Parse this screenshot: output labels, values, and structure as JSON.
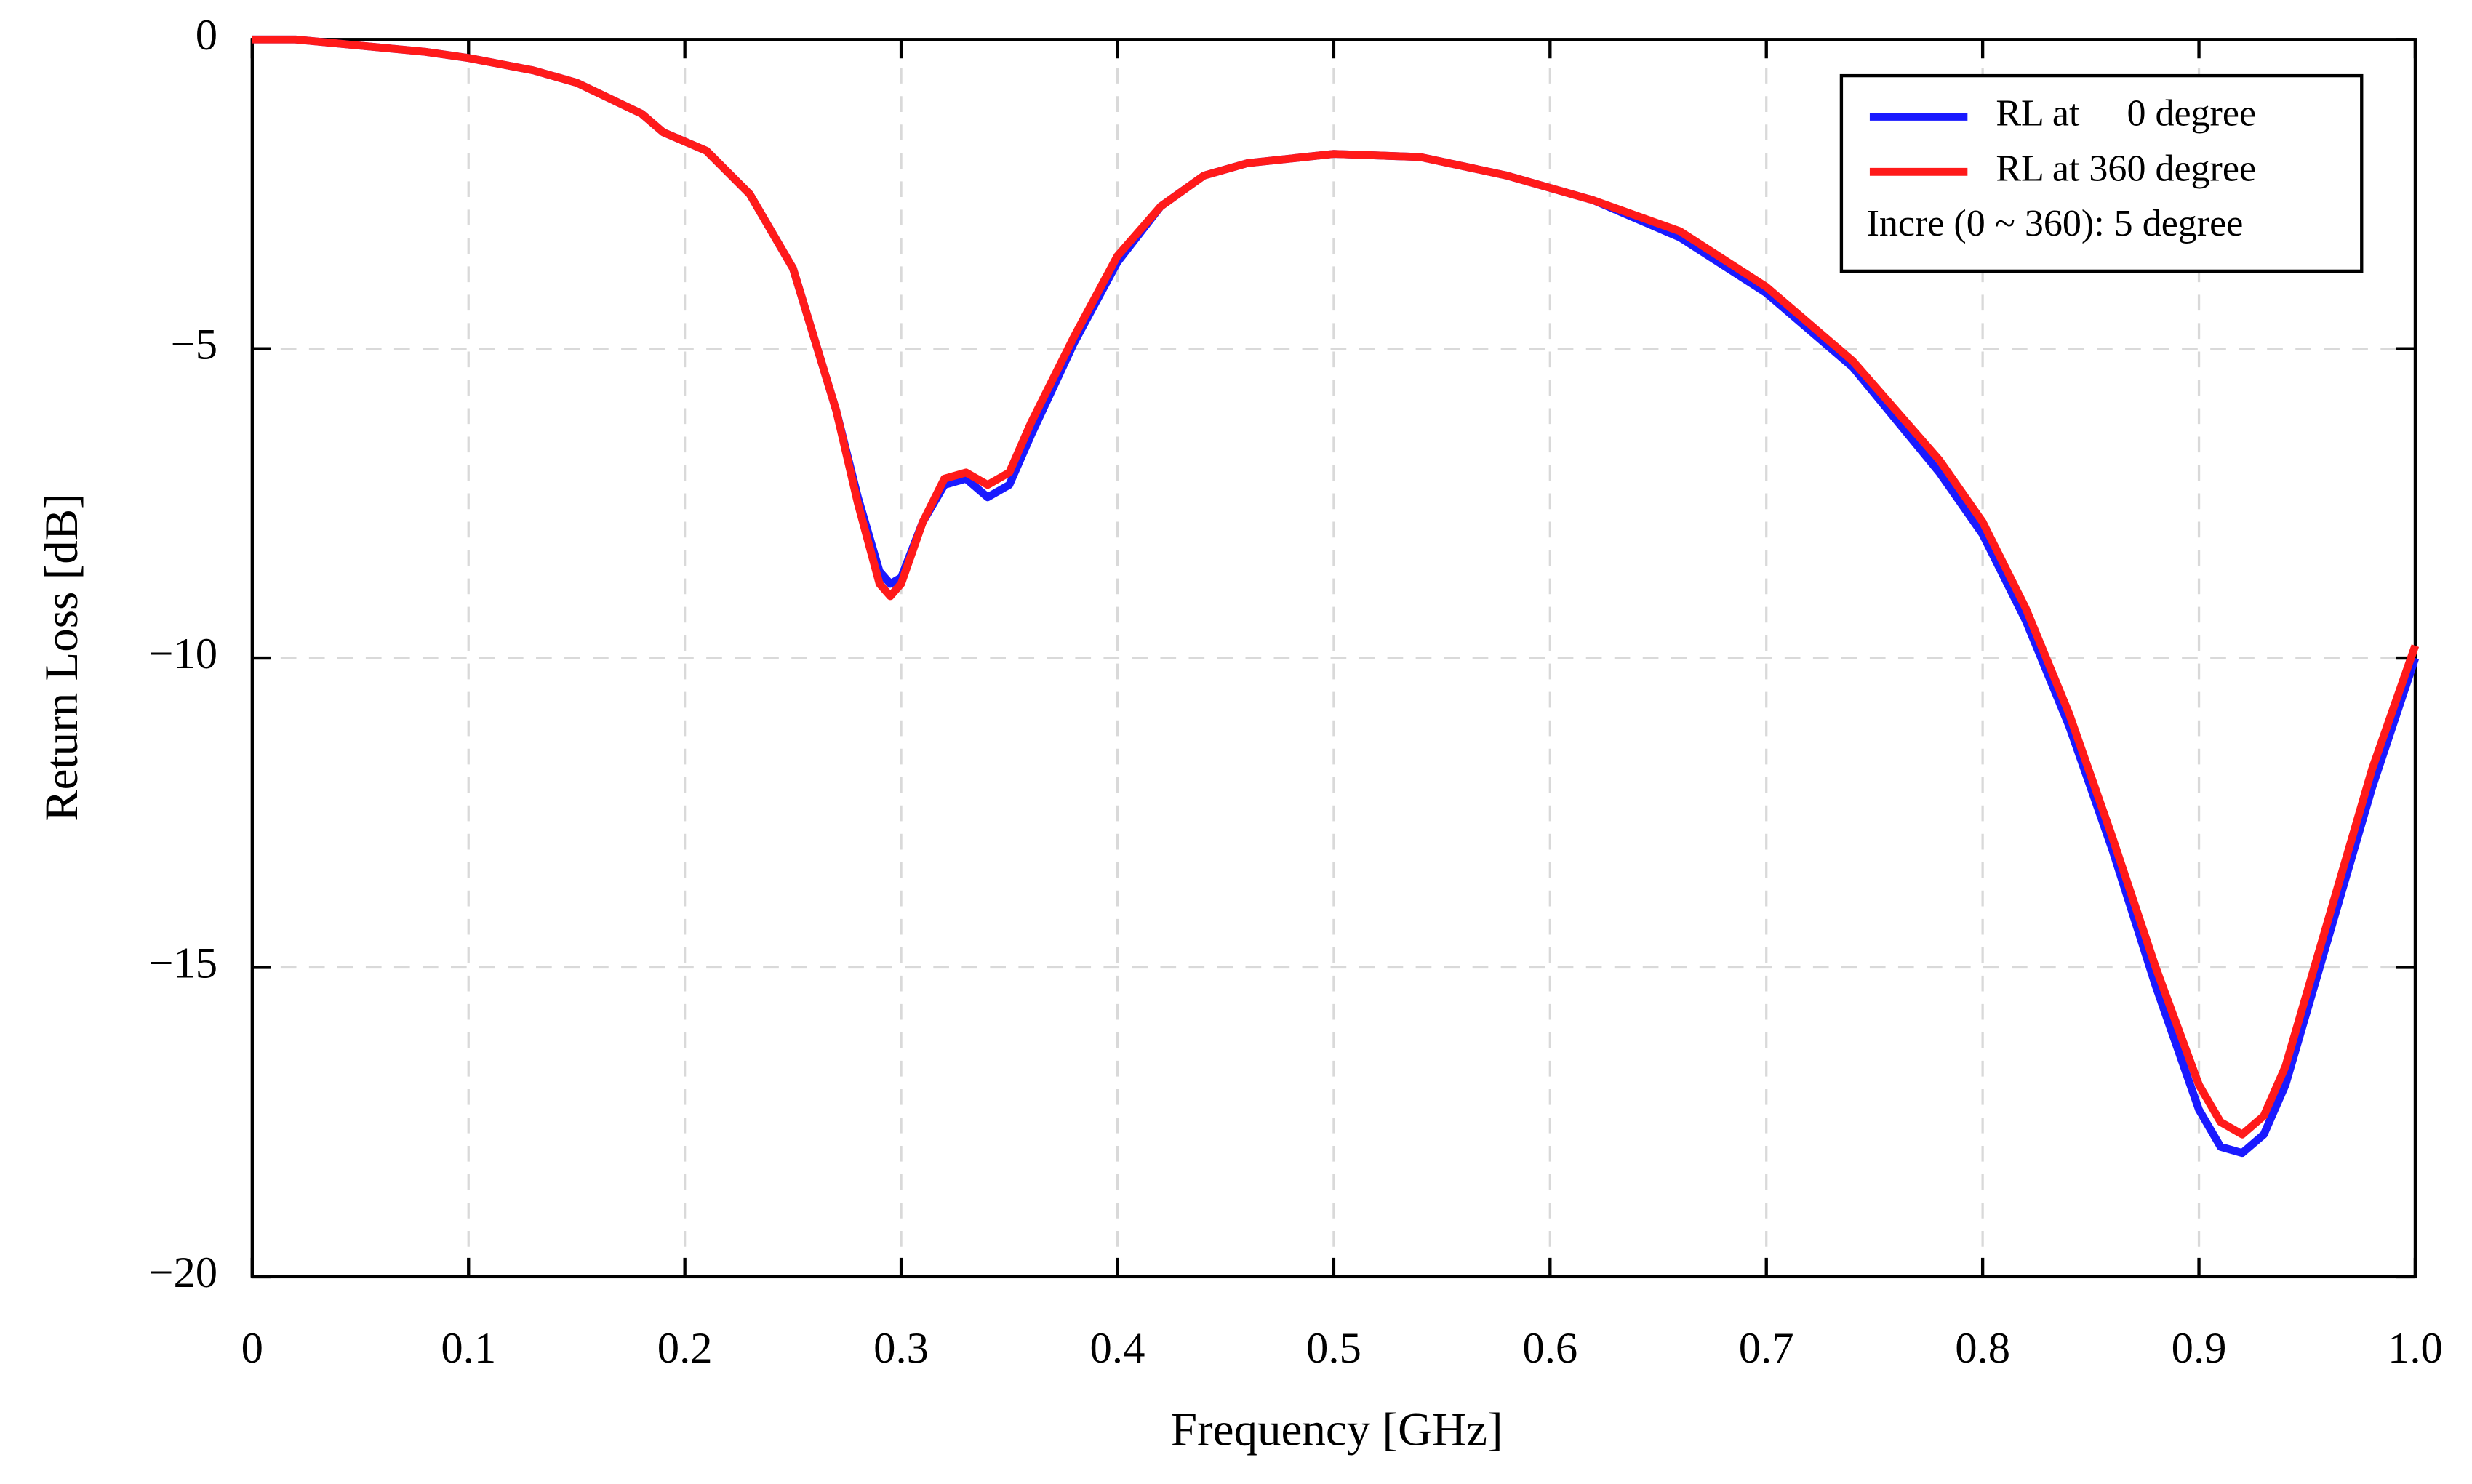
{
  "chart_data": {
    "type": "line",
    "x_label": "Frequency [GHz]",
    "y_label": "Return Loss [dB]",
    "annotation": "Incre (0 ~ 360): 5 degree",
    "legend": "top-right",
    "grid": true,
    "xlim": [
      0,
      1
    ],
    "ylim": [
      -20,
      0
    ],
    "xticks": [
      0,
      0.1,
      0.2,
      0.3,
      0.4,
      0.5,
      0.6,
      0.7,
      0.8,
      0.9,
      {
        "value": 1,
        "label": "1.0"
      }
    ],
    "yticks": [
      {
        "value": -20,
        "label": "−20"
      },
      {
        "value": -15,
        "label": "−15"
      },
      {
        "value": -10,
        "label": "−10"
      },
      {
        "value": -5,
        "label": "−5"
      },
      0
    ],
    "x": [
      0,
      0.02,
      0.05,
      0.08,
      0.1,
      0.13,
      0.15,
      0.18,
      0.19,
      0.21,
      0.23,
      0.25,
      0.27,
      0.28,
      0.29,
      0.295,
      0.3,
      0.31,
      0.32,
      0.33,
      0.34,
      0.35,
      0.36,
      0.38,
      0.4,
      0.42,
      0.44,
      0.46,
      0.5,
      0.54,
      0.58,
      0.62,
      0.66,
      0.7,
      0.74,
      0.78,
      0.8,
      0.82,
      0.84,
      0.86,
      0.88,
      0.9,
      0.91,
      0.92,
      0.93,
      0.94,
      0.96,
      0.98,
      1
    ],
    "series": [
      {
        "name": "RL at     0 degree",
        "color": "#1a1aff",
        "values": [
          0,
          0,
          -0.1,
          -0.2,
          -0.3,
          -0.5,
          -0.7,
          -1.2,
          -1.5,
          -1.8,
          -2.5,
          -3.7,
          -6.0,
          -7.4,
          -8.6,
          -8.8,
          -8.7,
          -7.8,
          -7.2,
          -7.1,
          -7.4,
          -7.2,
          -6.4,
          -4.9,
          -3.6,
          -2.7,
          -2.2,
          -2.0,
          -1.85,
          -1.9,
          -2.2,
          -2.6,
          -3.2,
          -4.1,
          -5.3,
          -7.0,
          -8.0,
          -9.4,
          -11.1,
          -13.1,
          -15.3,
          -17.3,
          -17.9,
          -18.0,
          -17.7,
          -16.9,
          -14.5,
          -12.1,
          -10.0
        ]
      },
      {
        "name": "RL at 360 degree",
        "color": "#ff1a1a",
        "values": [
          0,
          0,
          -0.1,
          -0.2,
          -0.3,
          -0.5,
          -0.7,
          -1.2,
          -1.5,
          -1.8,
          -2.5,
          -3.7,
          -6.0,
          -7.5,
          -8.8,
          -9.0,
          -8.8,
          -7.8,
          -7.1,
          -7.0,
          -7.2,
          -7.0,
          -6.2,
          -4.8,
          -3.5,
          -2.7,
          -2.2,
          -2.0,
          -1.85,
          -1.9,
          -2.2,
          -2.6,
          -3.1,
          -4.0,
          -5.2,
          -6.8,
          -7.8,
          -9.2,
          -10.9,
          -12.9,
          -15.0,
          -16.9,
          -17.5,
          -17.7,
          -17.4,
          -16.6,
          -14.2,
          -11.8,
          -9.8
        ]
      }
    ]
  }
}
